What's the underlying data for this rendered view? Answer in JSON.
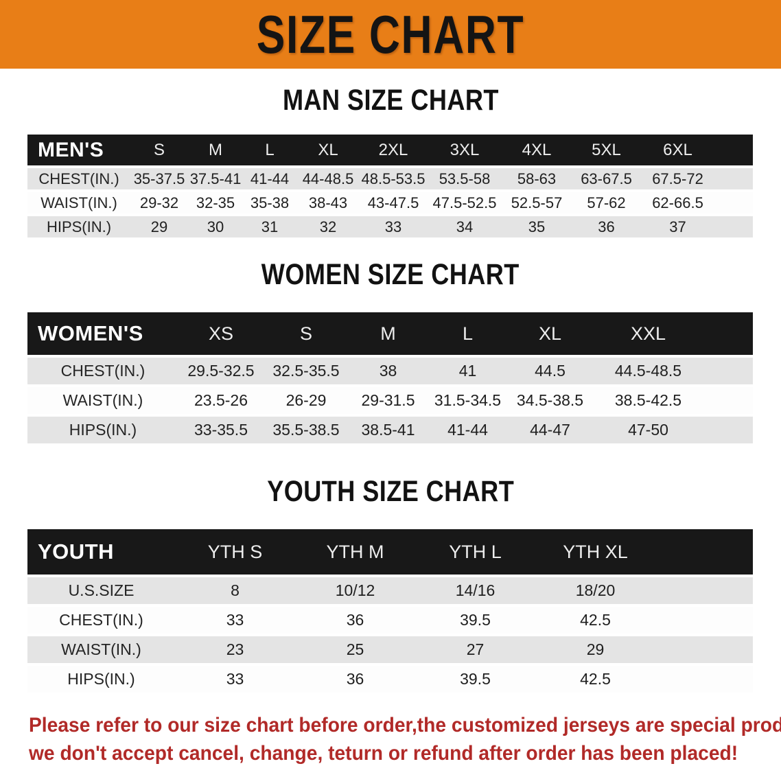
{
  "banner": {
    "title": "SIZE CHART"
  },
  "sections": {
    "men": {
      "title": "MAN SIZE CHART",
      "header_label": "MEN'S",
      "columns": [
        "S",
        "M",
        "L",
        "XL",
        "2XL",
        "3XL",
        "4XL",
        "5XL",
        "6XL"
      ],
      "rows": [
        {
          "label": "CHEST(IN.)",
          "values": [
            "35-37.5",
            "37.5-41",
            "41-44",
            "44-48.5",
            "48.5-53.5",
            "53.5-58",
            "58-63",
            "63-67.5",
            "67.5-72"
          ]
        },
        {
          "label": "WAIST(IN.)",
          "values": [
            "29-32",
            "32-35",
            "35-38",
            "38-43",
            "43-47.5",
            "47.5-52.5",
            "52.5-57",
            "57-62",
            "62-66.5"
          ]
        },
        {
          "label": "HIPS(IN.)",
          "values": [
            "29",
            "30",
            "31",
            "32",
            "33",
            "34",
            "35",
            "36",
            "37"
          ]
        }
      ]
    },
    "women": {
      "title": "WOMEN SIZE CHART",
      "header_label": "WOMEN'S",
      "columns": [
        "XS",
        "S",
        "M",
        "L",
        "XL",
        "XXL"
      ],
      "rows": [
        {
          "label": "CHEST(IN.)",
          "values": [
            "29.5-32.5",
            "32.5-35.5",
            "38",
            "41",
            "44.5",
            "44.5-48.5"
          ]
        },
        {
          "label": "WAIST(IN.)",
          "values": [
            "23.5-26",
            "26-29",
            "29-31.5",
            "31.5-34.5",
            "34.5-38.5",
            "38.5-42.5"
          ]
        },
        {
          "label": "HIPS(IN.)",
          "values": [
            "33-35.5",
            "35.5-38.5",
            "38.5-41",
            "41-44",
            "44-47",
            "47-50"
          ]
        }
      ]
    },
    "youth": {
      "title": "YOUTH SIZE CHART",
      "header_label": "YOUTH",
      "columns": [
        "YTH S",
        "YTH M",
        "YTH L",
        "YTH XL"
      ],
      "rows": [
        {
          "label": "U.S.SIZE",
          "values": [
            "8",
            "10/12",
            "14/16",
            "18/20"
          ]
        },
        {
          "label": "CHEST(IN.)",
          "values": [
            "33",
            "36",
            "39.5",
            "42.5"
          ]
        },
        {
          "label": "WAIST(IN.)",
          "values": [
            "23",
            "25",
            "27",
            "29"
          ]
        },
        {
          "label": "HIPS(IN.)",
          "values": [
            "33",
            "36",
            "39.5",
            "42.5"
          ]
        }
      ]
    }
  },
  "note": {
    "line1": "Please refer to our size chart before order,the customized jerseys are special products,",
    "line2": "we don't accept cancel, change, teturn or refund after order has been placed!"
  },
  "colors": {
    "banner_orange": "#e87e17",
    "table_header_black": "#181818",
    "row_gray": "#e4e4e4",
    "note_red": "#b12a28"
  }
}
